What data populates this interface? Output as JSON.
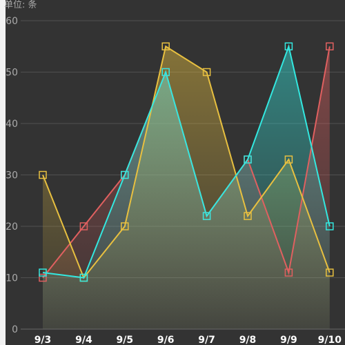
{
  "chart_data": {
    "type": "line",
    "unit_label": "单位: 条",
    "categories": [
      "9/3",
      "9/4",
      "9/5",
      "9/6",
      "9/7",
      "9/8",
      "9/9",
      "9/10"
    ],
    "ylim": [
      0,
      60
    ],
    "yticks": [
      0,
      10,
      20,
      30,
      40,
      50,
      60
    ],
    "grid": true,
    "legend": "none",
    "series": [
      {
        "color": "#e06060",
        "values": [
          10,
          20,
          30,
          50,
          22,
          33,
          11,
          55
        ]
      },
      {
        "color": "#e8c040",
        "values": [
          30,
          10,
          20,
          55,
          50,
          22,
          33,
          11
        ]
      },
      {
        "color": "#33e8e0",
        "values": [
          11,
          10,
          30,
          50,
          22,
          33,
          55,
          20
        ]
      }
    ]
  }
}
